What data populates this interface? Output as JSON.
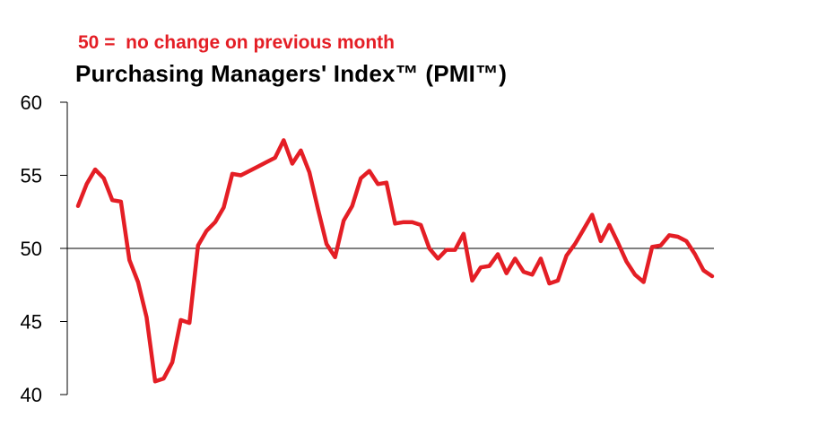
{
  "chart_data": {
    "type": "line",
    "subtitle": "50 =  no change on previous month",
    "title": "Purchasing Managers' Index™ (PMI™)",
    "ylim": [
      40,
      60
    ],
    "yticks": [
      "60",
      "55",
      "50",
      "45",
      "40"
    ],
    "reference_line": 50,
    "grid": false,
    "series": [
      {
        "color": "#e41e25",
        "values": [
          52.9,
          54.4,
          55.4,
          54.8,
          53.3,
          53.2,
          49.2,
          47.7,
          45.3,
          40.9,
          41.1,
          42.2,
          45.1,
          44.9,
          50.2,
          51.2,
          51.8,
          52.8,
          55.1,
          55.0,
          55.3,
          55.6,
          55.9,
          56.2,
          57.4,
          55.8,
          56.7,
          55.2,
          52.7,
          50.3,
          49.4,
          51.9,
          52.9,
          54.8,
          55.3,
          54.4,
          54.5,
          51.7,
          51.8,
          51.8,
          51.6,
          50.0,
          49.3,
          49.9,
          49.9,
          51.0,
          47.8,
          48.7,
          48.8,
          49.6,
          48.3,
          49.3,
          48.4,
          48.2,
          49.3,
          47.6,
          47.8,
          49.5,
          50.3,
          51.3,
          52.3,
          50.5,
          51.6,
          50.4,
          49.1,
          48.2,
          47.7,
          50.1,
          50.2,
          50.9,
          50.8,
          50.5,
          49.6,
          48.5,
          48.1
        ]
      }
    ]
  }
}
